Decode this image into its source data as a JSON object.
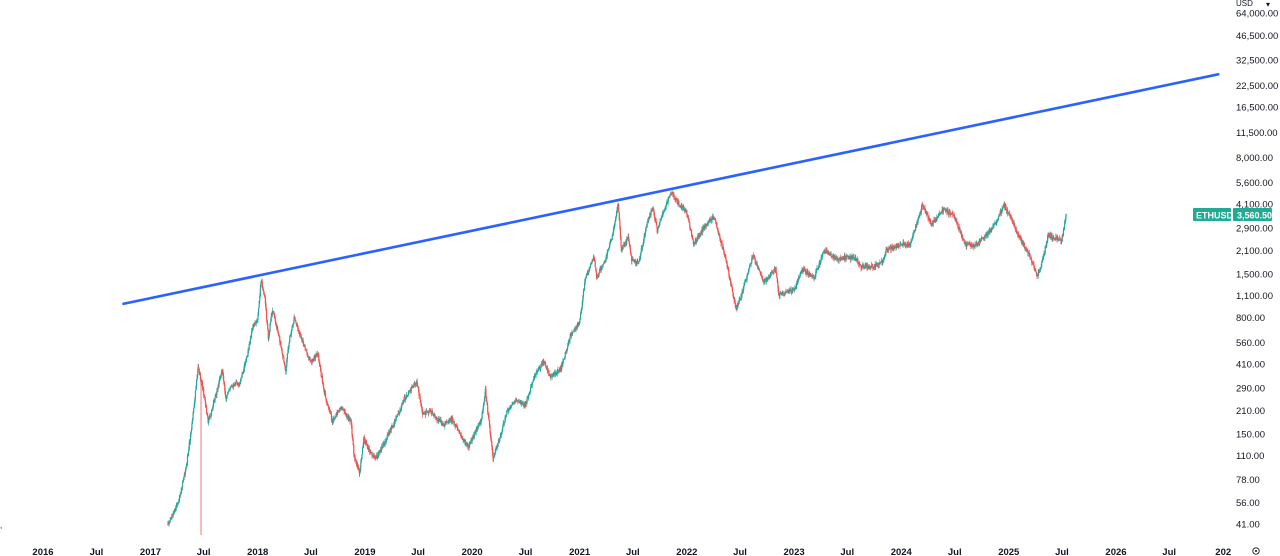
{
  "chart_data": {
    "type": "candlestick",
    "symbol": "ETHUSD",
    "currency": "USD",
    "last_price_label": "3,560.50",
    "scale": "log",
    "ylim": [
      35,
      80000
    ],
    "x_range": [
      "2015-10-01",
      "2026-12-31"
    ],
    "colors": {
      "up": "#26a69a",
      "down": "#ef5350",
      "trendline": "#2962ff",
      "price_label": "#22ab94"
    },
    "y_ticks": [
      {
        "v": 64000,
        "label": "64,000.00"
      },
      {
        "v": 46500,
        "label": "46,500.00"
      },
      {
        "v": 32500,
        "label": "32,500.00"
      },
      {
        "v": 22500,
        "label": "22,500.00"
      },
      {
        "v": 16500,
        "label": "16,500.00"
      },
      {
        "v": 11500,
        "label": "11,500.00"
      },
      {
        "v": 8000,
        "label": "8,000.00"
      },
      {
        "v": 5600,
        "label": "5,600.00"
      },
      {
        "v": 4100,
        "label": "4,100.00"
      },
      {
        "v": 2900,
        "label": "2,900.00"
      },
      {
        "v": 2100,
        "label": "2,100.00"
      },
      {
        "v": 1500,
        "label": "1,500.00"
      },
      {
        "v": 1100,
        "label": "1,100.00"
      },
      {
        "v": 800,
        "label": "800.00"
      },
      {
        "v": 560,
        "label": "560.00"
      },
      {
        "v": 410,
        "label": "410.00"
      },
      {
        "v": 290,
        "label": "290.00"
      },
      {
        "v": 210,
        "label": "210.00"
      },
      {
        "v": 150,
        "label": "150.00"
      },
      {
        "v": 110,
        "label": "110.00"
      },
      {
        "v": 78,
        "label": "78.00"
      },
      {
        "v": 56,
        "label": "56.00"
      },
      {
        "v": 41,
        "label": "41.00"
      }
    ],
    "x_ticks": [
      {
        "date": "2016-01-01",
        "label": "2016"
      },
      {
        "date": "2016-07-01",
        "label": "Jul"
      },
      {
        "date": "2017-01-01",
        "label": "2017"
      },
      {
        "date": "2017-07-01",
        "label": "Jul"
      },
      {
        "date": "2018-01-01",
        "label": "2018"
      },
      {
        "date": "2018-07-01",
        "label": "Jul"
      },
      {
        "date": "2019-01-01",
        "label": "2019"
      },
      {
        "date": "2019-07-01",
        "label": "Jul"
      },
      {
        "date": "2020-01-01",
        "label": "2020"
      },
      {
        "date": "2020-07-01",
        "label": "Jul"
      },
      {
        "date": "2021-01-01",
        "label": "2021"
      },
      {
        "date": "2021-07-01",
        "label": "Jul"
      },
      {
        "date": "2022-01-01",
        "label": "2022"
      },
      {
        "date": "2022-07-01",
        "label": "Jul"
      },
      {
        "date": "2023-01-01",
        "label": "2023"
      },
      {
        "date": "2023-07-01",
        "label": "Jul"
      },
      {
        "date": "2024-01-01",
        "label": "2024"
      },
      {
        "date": "2024-07-01",
        "label": "Jul"
      },
      {
        "date": "2025-01-01",
        "label": "2025"
      },
      {
        "date": "2025-07-01",
        "label": "Jul"
      },
      {
        "date": "2026-01-01",
        "label": "2026"
      },
      {
        "date": "2026-07-01",
        "label": "Jul"
      },
      {
        "date": "2027-01-01",
        "label": "202"
      }
    ],
    "trendline": {
      "start": {
        "date": "2016-10-01",
        "price": 975
      },
      "end": {
        "date": "2026-12-15",
        "price": 26500
      }
    },
    "close_path": [
      [
        "2017-03-01",
        40
      ],
      [
        "2017-03-20",
        48
      ],
      [
        "2017-04-10",
        60
      ],
      [
        "2017-05-01",
        90
      ],
      [
        "2017-05-20",
        160
      ],
      [
        "2017-06-12",
        390
      ],
      [
        "2017-06-25",
        310
      ],
      [
        "2017-07-16",
        180
      ],
      [
        "2017-08-01",
        220
      ],
      [
        "2017-08-20",
        300
      ],
      [
        "2017-09-01",
        380
      ],
      [
        "2017-09-15",
        250
      ],
      [
        "2017-10-01",
        300
      ],
      [
        "2017-11-01",
        310
      ],
      [
        "2017-11-25",
        450
      ],
      [
        "2017-12-15",
        700
      ],
      [
        "2017-12-31",
        760
      ],
      [
        "2018-01-13",
        1380
      ],
      [
        "2018-01-25",
        1050
      ],
      [
        "2018-02-06",
        600
      ],
      [
        "2018-02-20",
        900
      ],
      [
        "2018-03-15",
        600
      ],
      [
        "2018-04-06",
        380
      ],
      [
        "2018-04-20",
        600
      ],
      [
        "2018-05-05",
        800
      ],
      [
        "2018-06-01",
        580
      ],
      [
        "2018-06-29",
        420
      ],
      [
        "2018-07-24",
        480
      ],
      [
        "2018-08-14",
        280
      ],
      [
        "2018-09-12",
        180
      ],
      [
        "2018-10-10",
        220
      ],
      [
        "2018-11-14",
        180
      ],
      [
        "2018-11-25",
        110
      ],
      [
        "2018-12-14",
        85
      ],
      [
        "2018-12-28",
        140
      ],
      [
        "2019-01-15",
        120
      ],
      [
        "2019-02-07",
        105
      ],
      [
        "2019-03-10",
        135
      ],
      [
        "2019-04-10",
        175
      ],
      [
        "2019-05-15",
        250
      ],
      [
        "2019-06-26",
        320
      ],
      [
        "2019-07-16",
        200
      ],
      [
        "2019-08-10",
        210
      ],
      [
        "2019-09-24",
        170
      ],
      [
        "2019-10-25",
        185
      ],
      [
        "2019-11-25",
        145
      ],
      [
        "2019-12-18",
        125
      ],
      [
        "2020-01-31",
        180
      ],
      [
        "2020-02-15",
        280
      ],
      [
        "2020-03-12",
        105
      ],
      [
        "2020-03-31",
        135
      ],
      [
        "2020-04-30",
        210
      ],
      [
        "2020-05-30",
        240
      ],
      [
        "2020-06-30",
        225
      ],
      [
        "2020-07-31",
        340
      ],
      [
        "2020-08-30",
        430
      ],
      [
        "2020-09-23",
        340
      ],
      [
        "2020-10-30",
        385
      ],
      [
        "2020-11-30",
        610
      ],
      [
        "2020-12-31",
        740
      ],
      [
        "2021-01-20",
        1380
      ],
      [
        "2021-02-19",
        1950
      ],
      [
        "2021-02-28",
        1420
      ],
      [
        "2021-03-30",
        1850
      ],
      [
        "2021-04-20",
        2500
      ],
      [
        "2021-05-12",
        4150
      ],
      [
        "2021-05-23",
        2100
      ],
      [
        "2021-06-15",
        2500
      ],
      [
        "2021-06-28",
        1800
      ],
      [
        "2021-07-20",
        1750
      ],
      [
        "2021-08-20",
        3200
      ],
      [
        "2021-09-07",
        3900
      ],
      [
        "2021-09-22",
        2800
      ],
      [
        "2021-10-15",
        3800
      ],
      [
        "2021-11-10",
        4800
      ],
      [
        "2021-12-05",
        4100
      ],
      [
        "2021-12-30",
        3700
      ],
      [
        "2022-01-24",
        2300
      ],
      [
        "2022-02-28",
        2900
      ],
      [
        "2022-04-03",
        3450
      ],
      [
        "2022-05-12",
        1900
      ],
      [
        "2022-06-18",
        900
      ],
      [
        "2022-07-15",
        1250
      ],
      [
        "2022-08-14",
        1950
      ],
      [
        "2022-09-20",
        1330
      ],
      [
        "2022-10-30",
        1600
      ],
      [
        "2022-11-10",
        1120
      ],
      [
        "2022-12-31",
        1200
      ],
      [
        "2023-01-30",
        1600
      ],
      [
        "2023-03-10",
        1420
      ],
      [
        "2023-04-15",
        2100
      ],
      [
        "2023-05-30",
        1850
      ],
      [
        "2023-06-30",
        1920
      ],
      [
        "2023-07-30",
        1860
      ],
      [
        "2023-08-17",
        1660
      ],
      [
        "2023-09-30",
        1670
      ],
      [
        "2023-10-30",
        1800
      ],
      [
        "2023-11-10",
        2100
      ],
      [
        "2023-12-30",
        2300
      ],
      [
        "2024-01-30",
        2300
      ],
      [
        "2024-02-29",
        3350
      ],
      [
        "2024-03-12",
        4050
      ],
      [
        "2024-04-13",
        3050
      ],
      [
        "2024-05-25",
        3800
      ],
      [
        "2024-06-30",
        3400
      ],
      [
        "2024-08-05",
        2300
      ],
      [
        "2024-09-06",
        2250
      ],
      [
        "2024-10-15",
        2600
      ],
      [
        "2024-11-15",
        3100
      ],
      [
        "2024-12-16",
        4050
      ],
      [
        "2025-01-07",
        3400
      ],
      [
        "2025-02-03",
        2600
      ],
      [
        "2025-03-10",
        2000
      ],
      [
        "2025-04-09",
        1450
      ],
      [
        "2025-04-25",
        1800
      ],
      [
        "2025-05-15",
        2600
      ],
      [
        "2025-06-15",
        2500
      ],
      [
        "2025-06-30",
        2400
      ],
      [
        "2025-07-15",
        3560
      ]
    ]
  }
}
